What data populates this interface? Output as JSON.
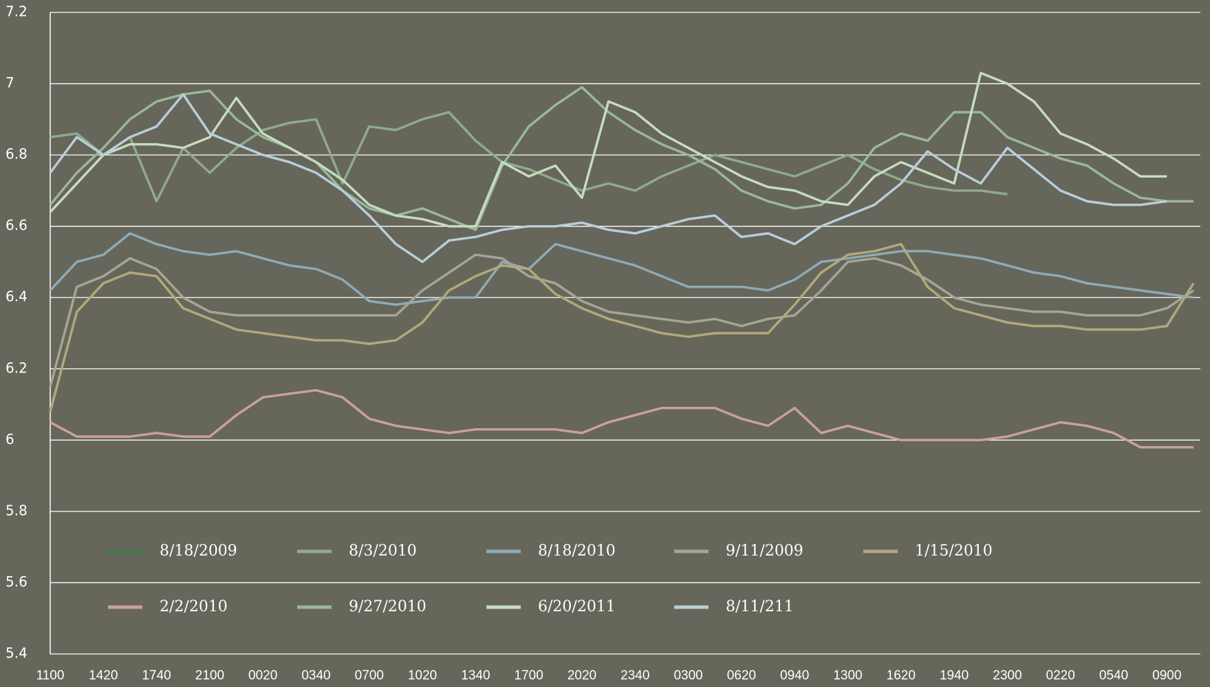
{
  "chart_data": {
    "type": "line",
    "categories": [
      "1100",
      null,
      "1420",
      null,
      "1740",
      null,
      "2100",
      null,
      "0020",
      null,
      "0340",
      null,
      "0700",
      null,
      "1020",
      null,
      "1340",
      null,
      "1700",
      null,
      "2020",
      null,
      "2340",
      null,
      "0300",
      null,
      "0620",
      null,
      "0940",
      null,
      "1300",
      null,
      "1620",
      null,
      "1940",
      null,
      "2300",
      null,
      "0220",
      null,
      "0540",
      null,
      "0900",
      null
    ],
    "ylim": [
      5.4,
      7.2
    ],
    "yticks": [
      5.4,
      5.6,
      5.8,
      6,
      6.2,
      6.4,
      6.6,
      6.8,
      7,
      7.2
    ],
    "grid": true,
    "legend": "bottom",
    "series": [
      {
        "name": "8/18/2009",
        "color": "#3f7d4c",
        "values": [
          null,
          null,
          null,
          null,
          null,
          null,
          null,
          null,
          null,
          null,
          null,
          null,
          null,
          null,
          null,
          null,
          null,
          null,
          null,
          null,
          null,
          null,
          null,
          null,
          null,
          null,
          null,
          null,
          null,
          null,
          null,
          null,
          null,
          null,
          null,
          null,
          null,
          null,
          null,
          null,
          null,
          null,
          null,
          null
        ]
      },
      {
        "name": "8/3/2010",
        "color": "#8fab8a",
        "values": [
          6.85,
          6.86,
          6.8,
          6.85,
          6.67,
          6.82,
          6.75,
          6.82,
          6.87,
          6.89,
          6.9,
          6.72,
          6.88,
          6.87,
          6.9,
          6.92,
          6.84,
          6.78,
          6.76,
          6.73,
          6.7,
          6.72,
          6.7,
          6.74,
          6.77,
          6.8,
          6.78,
          6.76,
          6.74,
          6.77,
          6.8,
          6.76,
          6.73,
          6.71,
          6.7,
          6.7,
          6.69,
          null,
          null,
          null,
          null,
          null,
          null,
          null
        ]
      },
      {
        "name": "8/18/2010",
        "color": "#8eaab8",
        "values": [
          6.42,
          6.5,
          6.52,
          6.58,
          6.55,
          6.53,
          6.52,
          6.53,
          6.51,
          6.49,
          6.48,
          6.45,
          6.39,
          6.38,
          6.39,
          6.4,
          6.4,
          6.5,
          6.48,
          6.55,
          6.53,
          6.51,
          6.49,
          6.46,
          6.43,
          6.43,
          6.43,
          6.42,
          6.45,
          6.5,
          6.51,
          6.52,
          6.53,
          6.53,
          6.52,
          6.51,
          6.49,
          6.47,
          6.46,
          6.44,
          6.43,
          6.42,
          6.41,
          6.4
        ]
      },
      {
        "name": "9/11/2009",
        "color": "#a6a696",
        "values": [
          6.15,
          6.43,
          6.46,
          6.51,
          6.48,
          6.4,
          6.36,
          6.35,
          6.35,
          6.35,
          6.35,
          6.35,
          6.35,
          6.35,
          6.42,
          6.47,
          6.52,
          6.51,
          6.46,
          6.44,
          6.39,
          6.36,
          6.35,
          6.34,
          6.33,
          6.34,
          6.32,
          6.34,
          6.35,
          6.42,
          6.5,
          6.51,
          6.49,
          6.45,
          6.4,
          6.38,
          6.37,
          6.36,
          6.36,
          6.35,
          6.35,
          6.35,
          6.37,
          6.42
        ]
      },
      {
        "name": "1/15/2010",
        "color": "#b3a87c",
        "values": [
          6.08,
          6.36,
          6.44,
          6.47,
          6.46,
          6.37,
          6.34,
          6.31,
          6.3,
          6.29,
          6.28,
          6.28,
          6.27,
          6.28,
          6.33,
          6.42,
          6.46,
          6.49,
          6.48,
          6.41,
          6.37,
          6.34,
          6.32,
          6.3,
          6.29,
          6.3,
          6.3,
          6.3,
          6.38,
          6.47,
          6.52,
          6.53,
          6.55,
          6.43,
          6.37,
          6.35,
          6.33,
          6.32,
          6.32,
          6.31,
          6.31,
          6.31,
          6.32,
          6.44
        ]
      },
      {
        "name": "2/2/2010",
        "color": "#c9a0a0",
        "values": [
          6.05,
          6.01,
          6.01,
          6.01,
          6.02,
          6.01,
          6.01,
          6.07,
          6.12,
          6.13,
          6.14,
          6.12,
          6.06,
          6.04,
          6.03,
          6.02,
          6.03,
          6.03,
          6.03,
          6.03,
          6.02,
          6.05,
          6.07,
          6.09,
          6.09,
          6.09,
          6.06,
          6.04,
          6.09,
          6.02,
          6.04,
          6.02,
          6,
          6,
          6,
          6,
          6.01,
          6.03,
          6.05,
          6.04,
          6.02,
          5.98,
          5.98,
          5.98
        ]
      },
      {
        "name": "9/27/2010",
        "color": "#9ab899",
        "values": [
          6.66,
          6.75,
          6.82,
          6.9,
          6.95,
          6.97,
          6.98,
          6.9,
          6.85,
          6.82,
          6.78,
          6.7,
          6.65,
          6.63,
          6.65,
          6.62,
          6.59,
          6.77,
          6.88,
          6.94,
          6.99,
          6.92,
          6.87,
          6.83,
          6.8,
          6.76,
          6.7,
          6.67,
          6.65,
          6.66,
          6.72,
          6.82,
          6.86,
          6.84,
          6.92,
          6.92,
          6.85,
          6.82,
          6.79,
          6.77,
          6.72,
          6.68,
          6.67,
          6.67
        ]
      },
      {
        "name": "6/20/2011",
        "color": "#c6dcc0",
        "values": [
          6.64,
          6.72,
          6.8,
          6.83,
          6.83,
          6.82,
          6.85,
          6.96,
          6.86,
          6.82,
          6.78,
          6.73,
          6.66,
          6.63,
          6.62,
          6.6,
          6.6,
          6.78,
          6.74,
          6.77,
          6.68,
          6.95,
          6.92,
          6.86,
          6.82,
          6.78,
          6.74,
          6.71,
          6.7,
          6.67,
          6.66,
          6.74,
          6.78,
          6.75,
          6.72,
          7.03,
          7,
          6.95,
          6.86,
          6.83,
          6.79,
          6.74,
          6.74,
          null
        ]
      },
      {
        "name": "8/11/211",
        "color": "#b8cedb",
        "values": [
          6.75,
          6.85,
          6.8,
          6.85,
          6.88,
          6.97,
          6.86,
          6.83,
          6.8,
          6.78,
          6.75,
          6.7,
          6.63,
          6.55,
          6.5,
          6.56,
          6.57,
          6.59,
          6.6,
          6.6,
          6.61,
          6.59,
          6.58,
          6.6,
          6.62,
          6.63,
          6.57,
          6.58,
          6.55,
          6.6,
          6.63,
          6.66,
          6.72,
          6.81,
          6.76,
          6.72,
          6.82,
          6.76,
          6.7,
          6.67,
          6.66,
          6.66,
          6.67,
          null
        ]
      }
    ]
  }
}
